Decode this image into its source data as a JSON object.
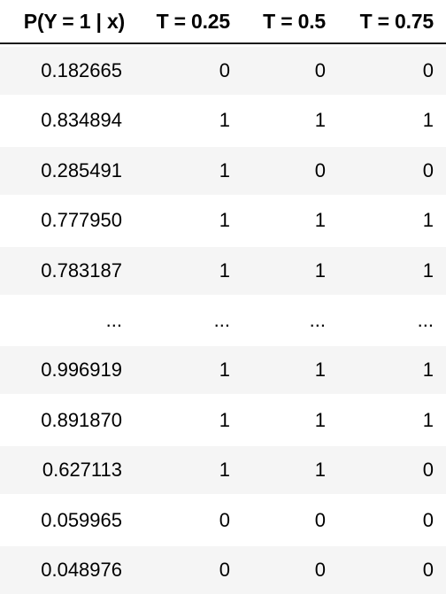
{
  "table": {
    "headers": [
      "P(Y = 1 | x)",
      "T = 0.25",
      "T = 0.5",
      "T = 0.75"
    ],
    "rows": [
      [
        "0.182665",
        "0",
        "0",
        "0"
      ],
      [
        "0.834894",
        "1",
        "1",
        "1"
      ],
      [
        "0.285491",
        "1",
        "0",
        "0"
      ],
      [
        "0.777950",
        "1",
        "1",
        "1"
      ],
      [
        "0.783187",
        "1",
        "1",
        "1"
      ],
      [
        "...",
        "...",
        "...",
        "..."
      ],
      [
        "0.996919",
        "1",
        "1",
        "1"
      ],
      [
        "0.891870",
        "1",
        "1",
        "1"
      ],
      [
        "0.627113",
        "1",
        "1",
        "0"
      ],
      [
        "0.059965",
        "0",
        "0",
        "0"
      ],
      [
        "0.048976",
        "0",
        "0",
        "0"
      ]
    ]
  },
  "colors": {
    "row_shade": "#f5f5f5",
    "header_rule": "#1a1a1a",
    "text": "#000000"
  }
}
